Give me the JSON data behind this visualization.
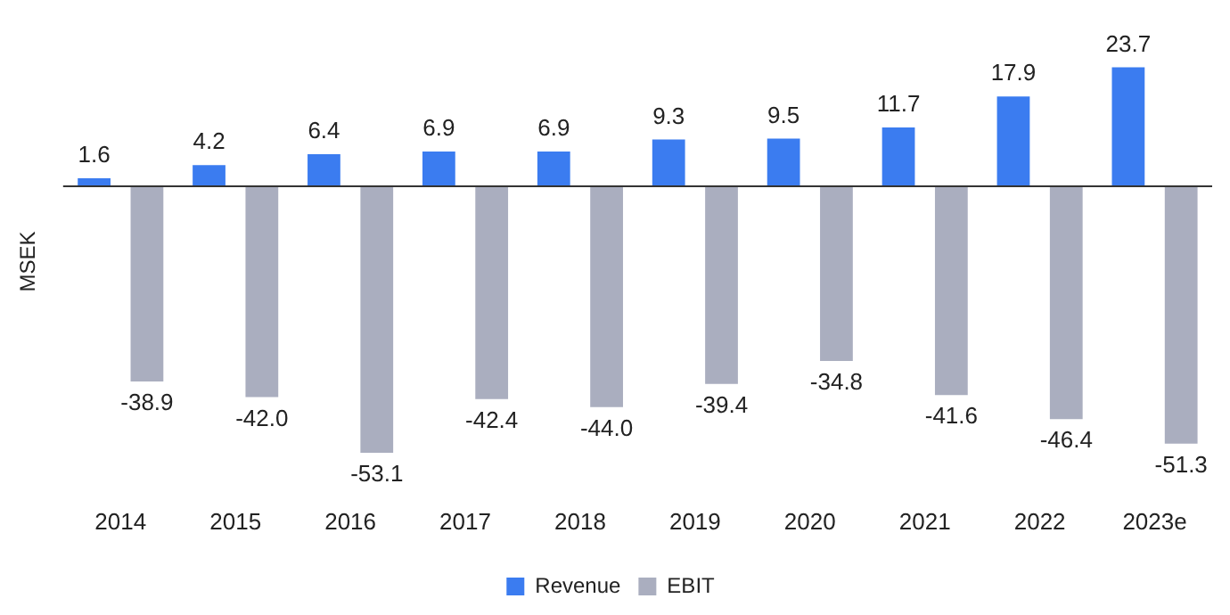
{
  "chart_data": {
    "type": "bar",
    "ylabel": "MSEK",
    "categories": [
      "2014",
      "2015",
      "2016",
      "2017",
      "2018",
      "2019",
      "2020",
      "2021",
      "2022",
      "2023e"
    ],
    "series": [
      {
        "name": "Revenue",
        "color": "#3b7cf0",
        "values": [
          1.6,
          4.2,
          6.4,
          6.9,
          6.9,
          9.3,
          9.5,
          11.7,
          17.9,
          23.7
        ],
        "value_labels": [
          "1.6",
          "4.2",
          "6.4",
          "6.9",
          "6.9",
          "9.3",
          "9.5",
          "11.7",
          "17.9",
          "23.7"
        ]
      },
      {
        "name": "EBIT",
        "color": "#aaaebf",
        "values": [
          -38.9,
          -42.0,
          -53.1,
          -42.4,
          -44.0,
          -39.4,
          -34.8,
          -41.6,
          -46.4,
          -51.3
        ],
        "value_labels": [
          "-38.9",
          "-42.0",
          "-53.1",
          "-42.4",
          "-44.0",
          "-39.4",
          "-34.8",
          "-41.6",
          "-46.4",
          "-51.3"
        ]
      }
    ],
    "legend": "bottom",
    "grid": false
  }
}
